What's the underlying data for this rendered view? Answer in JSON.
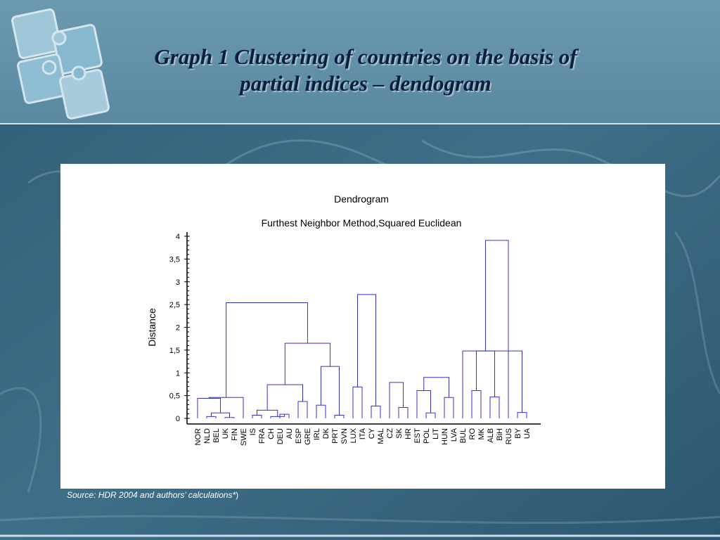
{
  "slide": {
    "title_line1": "Graph 1  Clustering of countries on the basis of",
    "title_line2": "partial indices – dendogram",
    "source_italic": "Source: HDR 2004 and authors’ calculations*",
    "source_tail": ")"
  },
  "colors": {
    "background": "#3f6d86",
    "header_band": "#5f8ea6",
    "link": "#3333cc",
    "title_text": "#0a1f3d"
  },
  "chart_data": {
    "type": "dendrogram",
    "title": "Dendrogram",
    "subtitle": "Furthest Neighbor Method,Squared Euclidean",
    "ylabel": "Distance",
    "xlabel": "",
    "ylim": [
      0,
      4
    ],
    "yticks": [
      "0",
      "0,5",
      "1",
      "1,5",
      "2",
      "2,5",
      "3",
      "3,5",
      "4"
    ],
    "grid": false,
    "leaves": [
      "NOR",
      "NLD",
      "BEL",
      "UK",
      "FIN",
      "SWE",
      "IS",
      "FRA",
      "CH",
      "DEU",
      "AU",
      "ESP",
      "GRE",
      "IRL",
      "DK",
      "PRT",
      "SVN",
      "LUX",
      "ITA",
      "CY",
      "MAL",
      "CZ",
      "SK",
      "HR",
      "EST",
      "POL",
      "LIT",
      "HUN",
      "LVA",
      "BUL",
      "RO",
      "MK",
      "ALB",
      "BiH",
      "RUS",
      "BY",
      "UA"
    ],
    "merges": [
      [
        "NLD",
        "BEL",
        0.04
      ],
      [
        "UK",
        "FIN",
        0.02
      ],
      [
        "NLD+BEL",
        "UK+FIN",
        0.12
      ],
      [
        "NOR",
        "NLD+BEL+UK+FIN",
        0.44
      ],
      [
        "NOR+NLD+BEL+UK+FIN",
        "SWE",
        0.46
      ],
      [
        "IS",
        "FRA",
        0.07
      ],
      [
        "DEU",
        "AU",
        0.09
      ],
      [
        "CH",
        "DEU+AU",
        0.04
      ],
      [
        "IS+FRA",
        "CH+DEU+AU",
        0.18
      ],
      [
        "ESP",
        "GRE",
        0.37
      ],
      [
        "IS+FRA+CH+DEU+AU",
        "ESP+GRE",
        0.74
      ],
      [
        "IRL",
        "DK",
        0.29
      ],
      [
        "PRT",
        "SVN",
        0.07
      ],
      [
        "IRL+DK",
        "PRT+SVN",
        1.14
      ],
      [
        "IS..GRE",
        "IRL..SVN",
        1.65
      ],
      [
        "NOR..SWE",
        "IS..SVN",
        2.54
      ],
      [
        "LUX",
        "ITA",
        0.69
      ],
      [
        "CY",
        "MAL",
        0.27
      ],
      [
        "LUX+ITA",
        "CY+MAL",
        2.72
      ],
      [
        "SK",
        "HR",
        0.24
      ],
      [
        "CZ",
        "SK+HR",
        0.79
      ],
      [
        "POL",
        "LIT",
        0.12
      ],
      [
        "EST",
        "POL+LIT",
        0.61
      ],
      [
        "HUN",
        "LVA",
        0.46
      ],
      [
        "EST+POL+LIT",
        "HUN+LVA",
        0.9
      ],
      [
        "RO",
        "MK",
        0.61
      ],
      [
        "ALB",
        "BiH",
        0.47
      ],
      [
        "RO+MK",
        "ALB+BiH",
        1.48
      ],
      [
        "RO..BiH",
        "RUS",
        3.91
      ],
      [
        "BY",
        "UA",
        0.13
      ],
      [
        "BUL",
        "BY+UA",
        1.48
      ]
    ]
  }
}
